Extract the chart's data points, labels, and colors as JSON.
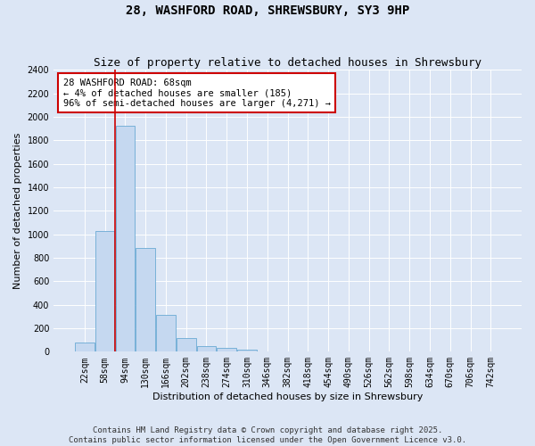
{
  "title_line1": "28, WASHFORD ROAD, SHREWSBURY, SY3 9HP",
  "title_line2": "Size of property relative to detached houses in Shrewsbury",
  "xlabel": "Distribution of detached houses by size in Shrewsbury",
  "ylabel": "Number of detached properties",
  "bar_labels": [
    "22sqm",
    "58sqm",
    "94sqm",
    "130sqm",
    "166sqm",
    "202sqm",
    "238sqm",
    "274sqm",
    "310sqm",
    "346sqm",
    "382sqm",
    "418sqm",
    "454sqm",
    "490sqm",
    "526sqm",
    "562sqm",
    "598sqm",
    "634sqm",
    "670sqm",
    "706sqm",
    "742sqm"
  ],
  "bar_values": [
    80,
    1030,
    1920,
    880,
    315,
    115,
    45,
    35,
    20,
    5,
    0,
    0,
    0,
    0,
    0,
    0,
    0,
    0,
    0,
    0,
    0
  ],
  "bar_color": "#c5d8f0",
  "bar_edge_color": "#6aaad4",
  "ylim": [
    0,
    2400
  ],
  "yticks": [
    0,
    200,
    400,
    600,
    800,
    1000,
    1200,
    1400,
    1600,
    1800,
    2000,
    2200,
    2400
  ],
  "vline_x": 1.5,
  "vline_color": "#cc0000",
  "annotation_text_line1": "28 WASHFORD ROAD: 68sqm",
  "annotation_text_line2": "← 4% of detached houses are smaller (185)",
  "annotation_text_line3": "96% of semi-detached houses are larger (4,271) →",
  "bg_color": "#dce6f5",
  "plot_bg_color": "#dce6f5",
  "grid_color": "#ffffff",
  "footer_line1": "Contains HM Land Registry data © Crown copyright and database right 2025.",
  "footer_line2": "Contains public sector information licensed under the Open Government Licence v3.0.",
  "title_fontsize": 10,
  "subtitle_fontsize": 9,
  "axis_label_fontsize": 8,
  "tick_fontsize": 7,
  "annotation_fontsize": 7.5,
  "footer_fontsize": 6.5
}
